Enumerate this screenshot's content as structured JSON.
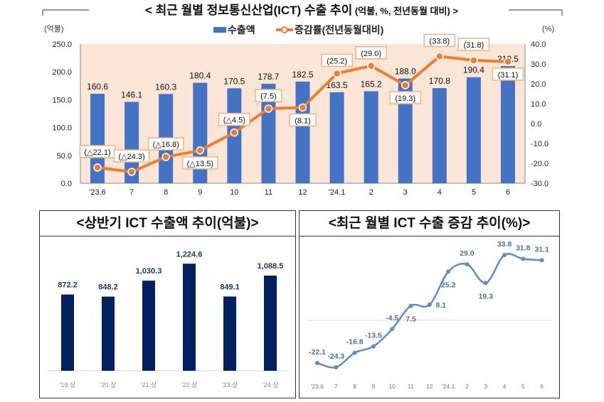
{
  "chart_data": [
    {
      "type": "bar+line",
      "title": "< 최근 월별 정보통신산업(ICT) 수출 추이",
      "title_suffix": "(억불, %, 전년동월 대비) >",
      "left_unit": "(억불)",
      "right_unit": "(%)",
      "categories": [
        "'23.6",
        "7",
        "8",
        "9",
        "10",
        "11",
        "12",
        "'24.1",
        "2",
        "3",
        "4",
        "5",
        "6"
      ],
      "left_ylim": [
        0,
        250
      ],
      "left_ticks": [
        "0.0",
        "50.0",
        "100.0",
        "150.0",
        "200.0",
        "250.0"
      ],
      "right_ylim": [
        -30,
        40
      ],
      "right_ticks": [
        "-30.0",
        "-20.0",
        "-10.0",
        "0.0",
        "10.0",
        "20.0",
        "30.0",
        "40.0"
      ],
      "legend": "top-center",
      "series": [
        {
          "name": "수출액",
          "kind": "bar",
          "color": "#4472c4",
          "values": [
            160.6,
            146.1,
            160.3,
            180.4,
            170.5,
            178.7,
            182.5,
            163.5,
            165.2,
            188.0,
            170.8,
            190.4,
            210.5
          ],
          "labels": [
            "160.6",
            "146.1",
            "160.3",
            "180.4",
            "170.5",
            "178.7",
            "182.5",
            "163.5",
            "165.2",
            "188.0",
            "170.8",
            "190.4",
            "210.5"
          ]
        },
        {
          "name": "증감률(전년동월대비)",
          "kind": "line",
          "color": "#ed7d31",
          "values": [
            -22.1,
            -24.3,
            -16.8,
            -13.5,
            -4.5,
            7.5,
            8.1,
            25.2,
            29.0,
            19.3,
            33.8,
            31.8,
            31.1
          ],
          "labels": [
            "(△22.1)",
            "(△24.3)",
            "(△16.8)",
            "(△13.5)",
            "(△4.5)",
            "(7.5)",
            "(8.1)",
            "(25.2)",
            "(29.0)",
            "(19.3)",
            "(33.8)",
            "(31.8)",
            "(31.1)"
          ]
        }
      ],
      "plot_background": "#fbe5d6"
    },
    {
      "type": "bar",
      "title": "<상반기 ICT 수출액 추이(억불)>",
      "categories": [
        "'19.상",
        "'20.상",
        "'21.상",
        "'22.상",
        "'23.상",
        "'24.상"
      ],
      "values": [
        872.2,
        848.2,
        1030.3,
        1224.6,
        849.1,
        1088.5
      ],
      "labels": [
        "872.2",
        "848.2",
        "1,030.3",
        "1,224.6",
        "849.1",
        "1,088.5"
      ],
      "color": "#002060",
      "ylim": [
        0,
        1300
      ]
    },
    {
      "type": "line",
      "title": "<최근 월별 ICT 수출 증감 추이(%)>",
      "categories": [
        "'23.6",
        "7",
        "8",
        "9",
        "10",
        "11",
        "12",
        "'24.1",
        "2",
        "3",
        "4",
        "5",
        "6"
      ],
      "values": [
        -22.1,
        -24.3,
        -16.8,
        -13.5,
        -4.5,
        7.5,
        8.1,
        25.2,
        29.0,
        19.3,
        33.8,
        31.8,
        31.1
      ],
      "labels": [
        "-22.1",
        "-24.3",
        "-16.8",
        "-13.5",
        "-4.5",
        "7.5",
        "8.1",
        "25.2",
        "29.0",
        "19.3",
        "33.8",
        "31.8",
        "31.1"
      ],
      "color": "#5b8ec9",
      "smooth": true
    }
  ]
}
